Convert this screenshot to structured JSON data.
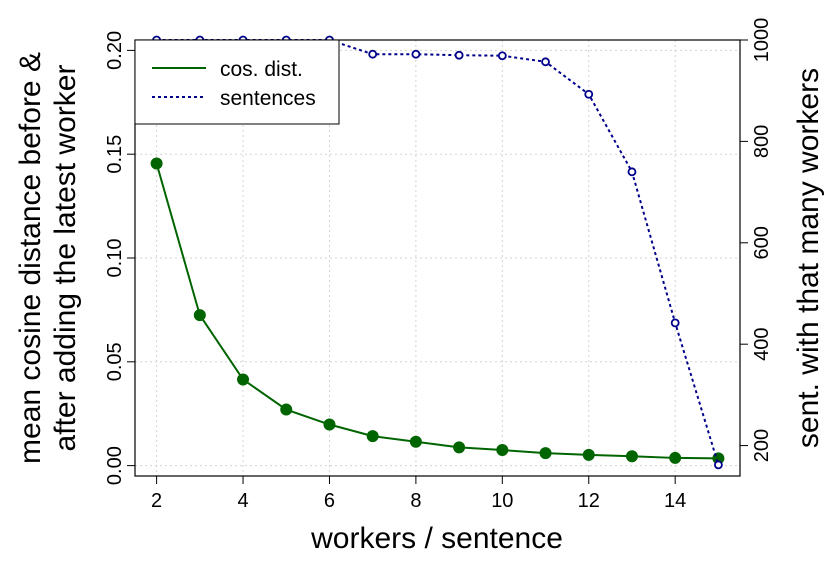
{
  "chart_data": {
    "type": "line",
    "xlabel": "workers / sentence",
    "ylabel": [
      "mean cosine distance before &",
      "after adding the latest worker"
    ],
    "y2label": "sent. with that many workers",
    "x": [
      2,
      3,
      4,
      5,
      6,
      7,
      8,
      9,
      10,
      11,
      12,
      13,
      14,
      15
    ],
    "xlim": [
      1.5,
      15.5
    ],
    "ylim": [
      -0.005,
      0.205
    ],
    "y2lim": [
      140,
      1000
    ],
    "xticks": [
      "2",
      "4",
      "6",
      "8",
      "10",
      "12",
      "14"
    ],
    "yticks": [
      "0.00",
      "0.05",
      "0.10",
      "0.15",
      "0.20"
    ],
    "y2ticks": [
      "200",
      "400",
      "600",
      "800",
      "1000"
    ],
    "grid": true,
    "legend_position": "top-left",
    "series": [
      {
        "name": "cos. dist.",
        "axis": "left",
        "style": "solid",
        "marker": "filled-circle",
        "color": "#006400",
        "values": [
          0.1455,
          0.0725,
          0.0415,
          0.027,
          0.0198,
          0.0142,
          0.0115,
          0.0088,
          0.0075,
          0.006,
          0.0052,
          0.0045,
          0.0037,
          0.0035
        ]
      },
      {
        "name": "sentences",
        "axis": "right",
        "style": "dotted",
        "marker": "open-circle",
        "color": "#00008b",
        "values": [
          1000,
          1000,
          1000,
          1000,
          1000,
          972,
          972,
          970,
          969,
          957,
          893,
          740,
          442,
          162
        ]
      }
    ]
  }
}
